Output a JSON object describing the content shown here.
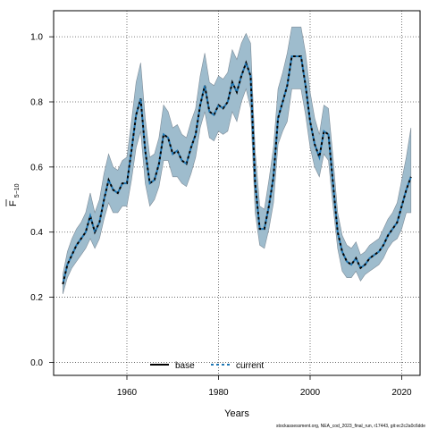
{
  "chart_data": {
    "type": "line",
    "xlabel": "Years",
    "ylabel": "F",
    "ylabel_subscript": "5−10",
    "xlim": [
      1944,
      2024
    ],
    "ylim": [
      -0.04,
      1.08
    ],
    "x_ticks": [
      1960,
      1980,
      2000,
      2020
    ],
    "y_ticks": [
      0.0,
      0.2,
      0.4,
      0.6,
      0.8,
      1.0
    ],
    "y_tick_labels": [
      "0.0",
      "0.2",
      "0.4",
      "0.6",
      "0.8",
      "1.0"
    ],
    "x_tick_labels": [
      "1960",
      "1980",
      "2000",
      "2020"
    ],
    "grid": true,
    "legend_position": "bottom",
    "legend": [
      "base",
      "current"
    ],
    "colors": {
      "band": "#9ebccd",
      "band_edge": "#7f8d99",
      "base": "#000000",
      "current": "#1f77b4"
    },
    "footnote": "stockassessment.org, NEA_cod_2023_final_run, r17443, git:ec2c2a0c6dde",
    "x": [
      1946,
      1947,
      1948,
      1949,
      1950,
      1951,
      1952,
      1953,
      1954,
      1955,
      1956,
      1957,
      1958,
      1959,
      1960,
      1961,
      1962,
      1963,
      1964,
      1965,
      1966,
      1967,
      1968,
      1969,
      1970,
      1971,
      1972,
      1973,
      1974,
      1975,
      1976,
      1977,
      1978,
      1979,
      1980,
      1981,
      1982,
      1983,
      1984,
      1985,
      1986,
      1987,
      1988,
      1989,
      1990,
      1991,
      1992,
      1993,
      1994,
      1995,
      1996,
      1997,
      1998,
      1999,
      2000,
      2001,
      2002,
      2003,
      2004,
      2005,
      2006,
      2007,
      2008,
      2009,
      2010,
      2011,
      2012,
      2013,
      2014,
      2015,
      2016,
      2017,
      2018,
      2019,
      2020,
      2021,
      2022
    ],
    "series": [
      {
        "name": "base",
        "values": [
          0.24,
          0.3,
          0.33,
          0.36,
          0.38,
          0.4,
          0.45,
          0.4,
          0.43,
          0.5,
          0.56,
          0.53,
          0.52,
          0.55,
          0.55,
          0.65,
          0.76,
          0.81,
          0.65,
          0.55,
          0.56,
          0.61,
          0.7,
          0.69,
          0.64,
          0.65,
          0.62,
          0.61,
          0.66,
          0.7,
          0.79,
          0.85,
          0.77,
          0.76,
          0.79,
          0.78,
          0.8,
          0.86,
          0.83,
          0.88,
          0.92,
          0.88,
          0.55,
          0.41,
          0.41,
          0.48,
          0.57,
          0.75,
          0.8,
          0.85,
          0.94,
          0.94,
          0.94,
          0.85,
          0.74,
          0.67,
          0.63,
          0.71,
          0.7,
          0.55,
          0.4,
          0.34,
          0.31,
          0.3,
          0.32,
          0.29,
          0.3,
          0.32,
          0.33,
          0.34,
          0.36,
          0.39,
          0.41,
          0.43,
          0.48,
          0.53,
          0.57
        ]
      },
      {
        "name": "current",
        "values": [
          0.24,
          0.3,
          0.33,
          0.36,
          0.38,
          0.4,
          0.45,
          0.4,
          0.43,
          0.5,
          0.56,
          0.53,
          0.52,
          0.55,
          0.55,
          0.65,
          0.76,
          0.81,
          0.65,
          0.55,
          0.56,
          0.61,
          0.7,
          0.69,
          0.64,
          0.65,
          0.62,
          0.61,
          0.66,
          0.7,
          0.79,
          0.85,
          0.77,
          0.76,
          0.79,
          0.78,
          0.8,
          0.86,
          0.83,
          0.88,
          0.92,
          0.88,
          0.55,
          0.41,
          0.41,
          0.48,
          0.57,
          0.75,
          0.8,
          0.85,
          0.94,
          0.94,
          0.94,
          0.85,
          0.74,
          0.67,
          0.63,
          0.71,
          0.7,
          0.55,
          0.4,
          0.34,
          0.31,
          0.3,
          0.32,
          0.29,
          0.3,
          0.32,
          0.33,
          0.34,
          0.36,
          0.39,
          0.41,
          0.43,
          0.48,
          0.53,
          0.57
        ]
      }
    ],
    "band_lower": [
      0.21,
      0.26,
      0.29,
      0.31,
      0.33,
      0.35,
      0.38,
      0.35,
      0.38,
      0.44,
      0.49,
      0.46,
      0.46,
      0.48,
      0.48,
      0.56,
      0.66,
      0.71,
      0.55,
      0.48,
      0.5,
      0.54,
      0.62,
      0.62,
      0.57,
      0.57,
      0.55,
      0.54,
      0.58,
      0.63,
      0.72,
      0.77,
      0.69,
      0.68,
      0.71,
      0.7,
      0.71,
      0.77,
      0.74,
      0.8,
      0.84,
      0.78,
      0.46,
      0.36,
      0.35,
      0.41,
      0.49,
      0.67,
      0.71,
      0.74,
      0.84,
      0.84,
      0.84,
      0.76,
      0.66,
      0.6,
      0.57,
      0.64,
      0.62,
      0.48,
      0.35,
      0.28,
      0.26,
      0.26,
      0.28,
      0.25,
      0.27,
      0.28,
      0.29,
      0.3,
      0.32,
      0.35,
      0.37,
      0.38,
      0.41,
      0.46,
      0.46
    ],
    "band_upper": [
      0.27,
      0.34,
      0.38,
      0.41,
      0.43,
      0.46,
      0.52,
      0.46,
      0.5,
      0.58,
      0.64,
      0.6,
      0.59,
      0.62,
      0.63,
      0.74,
      0.86,
      0.92,
      0.75,
      0.63,
      0.64,
      0.69,
      0.79,
      0.77,
      0.72,
      0.73,
      0.7,
      0.69,
      0.74,
      0.78,
      0.88,
      0.95,
      0.86,
      0.85,
      0.88,
      0.87,
      0.89,
      0.96,
      0.93,
      0.98,
      1.01,
      0.98,
      0.65,
      0.48,
      0.47,
      0.56,
      0.66,
      0.84,
      0.89,
      0.95,
      1.03,
      1.03,
      1.03,
      0.95,
      0.83,
      0.75,
      0.7,
      0.79,
      0.78,
      0.63,
      0.46,
      0.39,
      0.36,
      0.35,
      0.37,
      0.33,
      0.34,
      0.36,
      0.37,
      0.38,
      0.41,
      0.44,
      0.46,
      0.49,
      0.56,
      0.63,
      0.72
    ]
  }
}
